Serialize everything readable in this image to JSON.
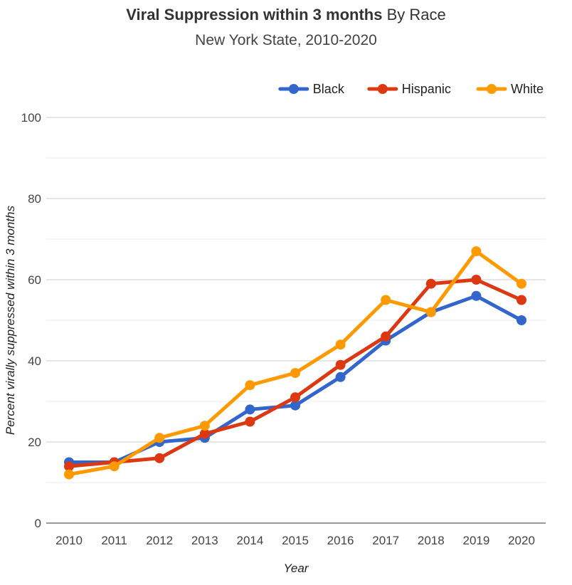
{
  "chart_data": {
    "type": "line",
    "title_main": "Viral Suppression within 3 months",
    "title_suffix": "By Race",
    "subtitle": "New York State, 2010-2020",
    "xlabel": "Year",
    "ylabel": "Percent virally suppressed within 3 months",
    "ylim": [
      0,
      100
    ],
    "yticks": [
      0,
      20,
      40,
      60,
      80,
      100
    ],
    "grid": true,
    "legend_position": "top-right",
    "categories": [
      "2010",
      "2011",
      "2012",
      "2013",
      "2014",
      "2015",
      "2016",
      "2017",
      "2018",
      "2019",
      "2020"
    ],
    "series": [
      {
        "name": "Black",
        "color": "#3366cc",
        "values": [
          15,
          15,
          20,
          21,
          28,
          29,
          36,
          45,
          52,
          56,
          50
        ]
      },
      {
        "name": "Hispanic",
        "color": "#dc3912",
        "values": [
          14,
          15,
          16,
          22,
          25,
          31,
          39,
          46,
          59,
          60,
          55
        ]
      },
      {
        "name": "White",
        "color": "#ff9900",
        "values": [
          12,
          14,
          21,
          24,
          34,
          37,
          44,
          55,
          52,
          67,
          59
        ]
      }
    ]
  }
}
